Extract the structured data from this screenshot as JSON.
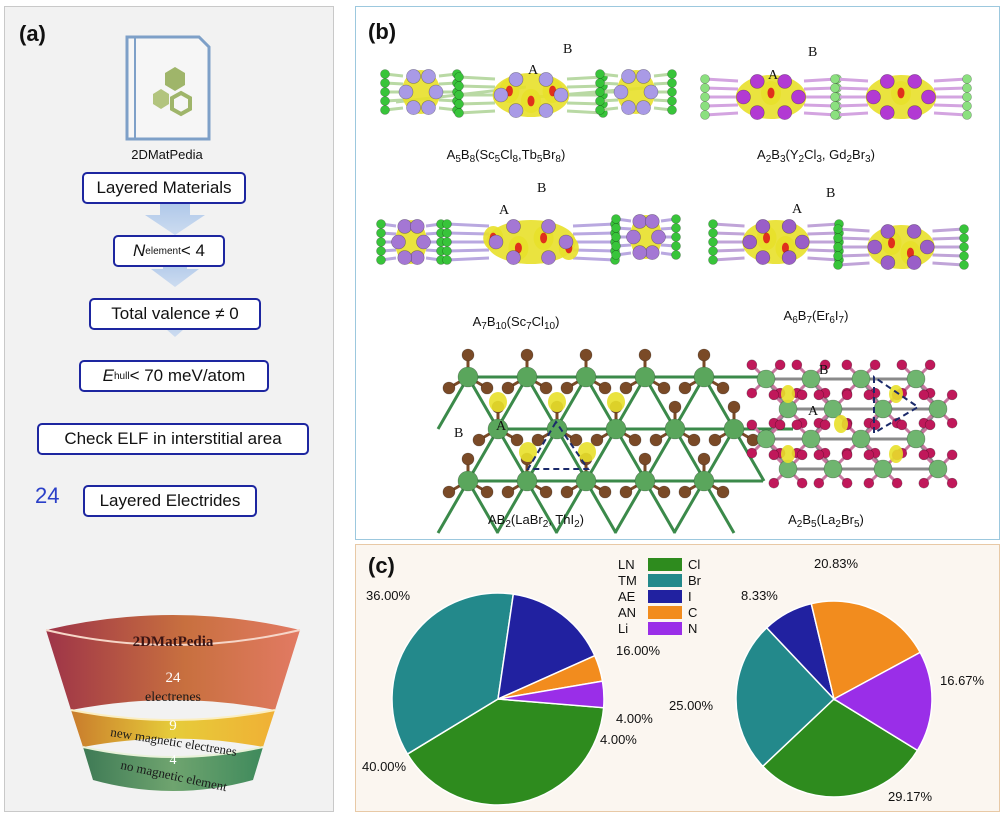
{
  "panel_a": {
    "label": "(a)",
    "db_name": "2DMatPedia",
    "steps": [
      "Layered Materials",
      "N",
      "element",
      " < 4",
      "Total valence ≠ 0",
      "E",
      "hull",
      " < 70 meV/atom",
      "Check ELF in interstitial area",
      "Layered Electrides"
    ],
    "count": "24",
    "funnel": {
      "top": "2DMatPedia",
      "l1_num": "24",
      "l1_text": "electrenes",
      "l2_num": "9",
      "l2_text": "new magnetic electrenes",
      "l3_num": "4",
      "l3_text": "no magnetic element"
    }
  },
  "panel_b": {
    "label": "(b)",
    "site_a": "A",
    "site_b": "B",
    "structures": [
      {
        "caption": [
          "A",
          "5",
          "B",
          "8",
          "(Sc",
          "5",
          "Cl",
          "8",
          ",Tb",
          "5",
          "Br",
          "8",
          ")"
        ]
      },
      {
        "caption": [
          "A",
          "2",
          "B",
          "3",
          "(Y",
          "2",
          "Cl",
          "3",
          ", Gd",
          "2",
          "Br",
          "3",
          ")"
        ]
      },
      {
        "caption": [
          "A",
          "7",
          "B",
          "10",
          "(Sc",
          "7",
          "Cl",
          "10",
          ")"
        ]
      },
      {
        "caption": [
          "A",
          "6",
          "B",
          "7",
          "(Er",
          "6",
          "I",
          "7",
          ")"
        ]
      },
      {
        "caption": [
          "AB",
          "2",
          "(LaBr",
          "2",
          ", ThI",
          "2",
          ")"
        ]
      },
      {
        "caption": [
          "A",
          "2",
          "B",
          "5",
          "(La",
          "2",
          "Br",
          "5",
          ")"
        ]
      }
    ]
  },
  "panel_c": {
    "label": "(c)",
    "legend": [
      {
        "abbr": "LN",
        "name": "Cl",
        "color": "#2e8b1e"
      },
      {
        "abbr": "TM",
        "name": "Br",
        "color": "#23898b"
      },
      {
        "abbr": "AE",
        "name": "I",
        "color": "#2121a0"
      },
      {
        "abbr": "AN",
        "name": "C",
        "color": "#f28c1e"
      },
      {
        "abbr": "Li",
        "name": "N",
        "color": "#9a2ee8"
      }
    ],
    "pie_left": {
      "values": [
        40.0,
        36.0,
        16.0,
        4.0,
        4.0
      ],
      "labels": [
        "40.00%",
        "36.00%",
        "16.00%",
        "4.00%",
        "4.00%"
      ]
    },
    "pie_right": {
      "values": [
        29.17,
        25.0,
        8.33,
        20.83,
        16.67
      ],
      "labels": [
        "29.17%",
        "25.00%",
        "8.33%",
        "20.83%",
        "16.67%"
      ]
    }
  }
}
